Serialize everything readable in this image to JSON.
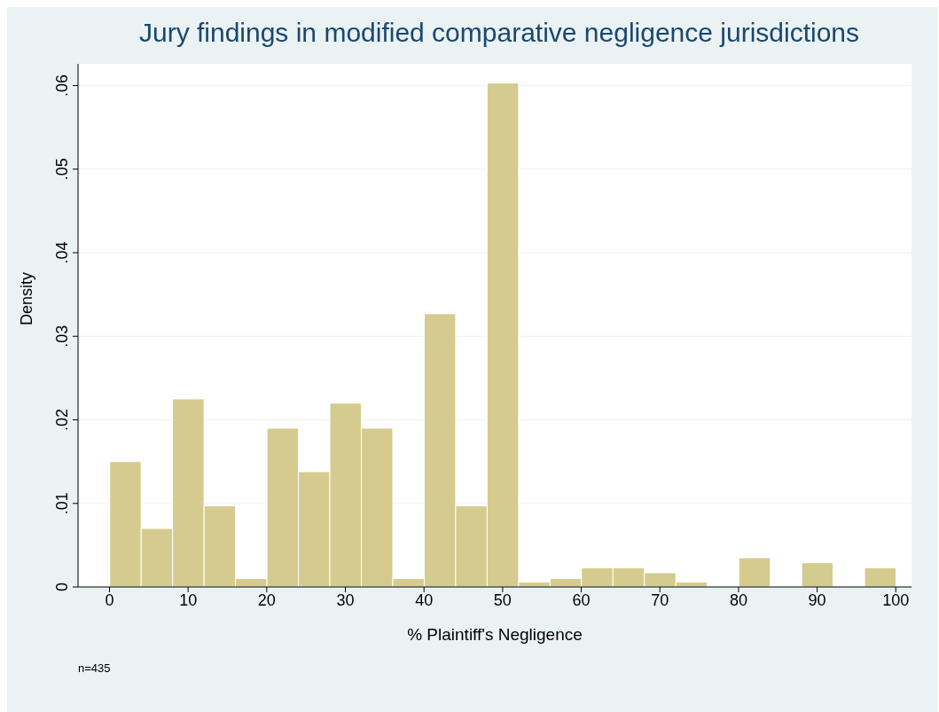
{
  "chart_data": {
    "type": "histogram",
    "title": "Jury findings in modified comparative negligence jurisdictions",
    "xlabel": "% Plaintiff's Negligence",
    "ylabel": "Density",
    "annotations": [
      "n=435"
    ],
    "bins": [
      0,
      4,
      8,
      12,
      16,
      20,
      24,
      28,
      32,
      36,
      40,
      44,
      48,
      52,
      56,
      60,
      64,
      68,
      72,
      76,
      80,
      84,
      88,
      92,
      96,
      100
    ],
    "values": [
      0.015,
      0.007,
      0.0225,
      0.0097,
      0.001,
      0.019,
      0.0138,
      0.022,
      0.019,
      0.001,
      0.0327,
      0.0097,
      0.0603,
      0.0006,
      0.001,
      0.0023,
      0.0023,
      0.0017,
      0.0006,
      0,
      0.0035,
      0,
      0.0029,
      0,
      0.0023
    ],
    "color": "#d5cb8f",
    "xlim": [
      -4,
      102
    ],
    "xticks": [
      0,
      10,
      20,
      30,
      40,
      50,
      60,
      70,
      80,
      90,
      100
    ],
    "ylim": [
      0,
      0.0626
    ],
    "yticks": [
      0,
      {
        "value": 0.01,
        "label": ".01"
      },
      {
        "value": 0.02,
        "label": ".02"
      },
      {
        "value": 0.03,
        "label": ".03"
      },
      {
        "value": 0.04,
        "label": ".04"
      },
      {
        "value": 0.05,
        "label": ".05"
      },
      {
        "value": 0.06,
        "label": ".06"
      }
    ],
    "grid": "y"
  }
}
